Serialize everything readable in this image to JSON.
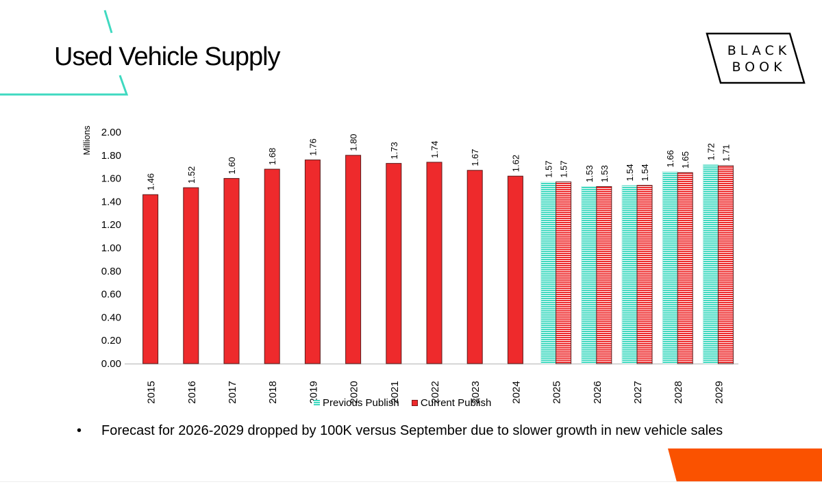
{
  "slide": {
    "title": "Used Vehicle Supply",
    "logo": {
      "line1": "BLACK",
      "line2": "BOOK"
    },
    "bullets": [
      "Forecast for 2026-2029 dropped by 100K versus September due to slower growth in new vehicle sales"
    ],
    "bullet_glyph": "•",
    "colors": {
      "accent_teal": "#3fd9c0",
      "accent_orange": "#fa5200",
      "bar_red": "#ee2a2c"
    }
  },
  "chart_data": {
    "type": "bar",
    "title": "",
    "xlabel": "",
    "ylabel": "Millions",
    "ylim": [
      0,
      2.0
    ],
    "yticks": [
      "0.00",
      "0.20",
      "0.40",
      "0.60",
      "0.80",
      "1.00",
      "1.20",
      "1.40",
      "1.60",
      "1.80",
      "2.00"
    ],
    "grid": false,
    "legend_position": "bottom",
    "categories": [
      "2015",
      "2016",
      "2017",
      "2018",
      "2019",
      "2020",
      "2021",
      "2022",
      "2023",
      "2024",
      "2025",
      "2026",
      "2027",
      "2028",
      "2029"
    ],
    "series": [
      {
        "name": "Previous Publish",
        "color": "#3fd9c0",
        "pattern": "horizontal-stripes",
        "values": [
          null,
          null,
          null,
          null,
          null,
          null,
          null,
          null,
          null,
          null,
          1.57,
          1.53,
          1.54,
          1.66,
          1.72
        ]
      },
      {
        "name": "Current Publish",
        "color": "#ee2a2c",
        "values": [
          1.46,
          1.52,
          1.6,
          1.68,
          1.76,
          1.8,
          1.73,
          1.74,
          1.67,
          1.62,
          1.57,
          1.53,
          1.54,
          1.65,
          1.71
        ],
        "forecast_from": "2025"
      }
    ]
  }
}
